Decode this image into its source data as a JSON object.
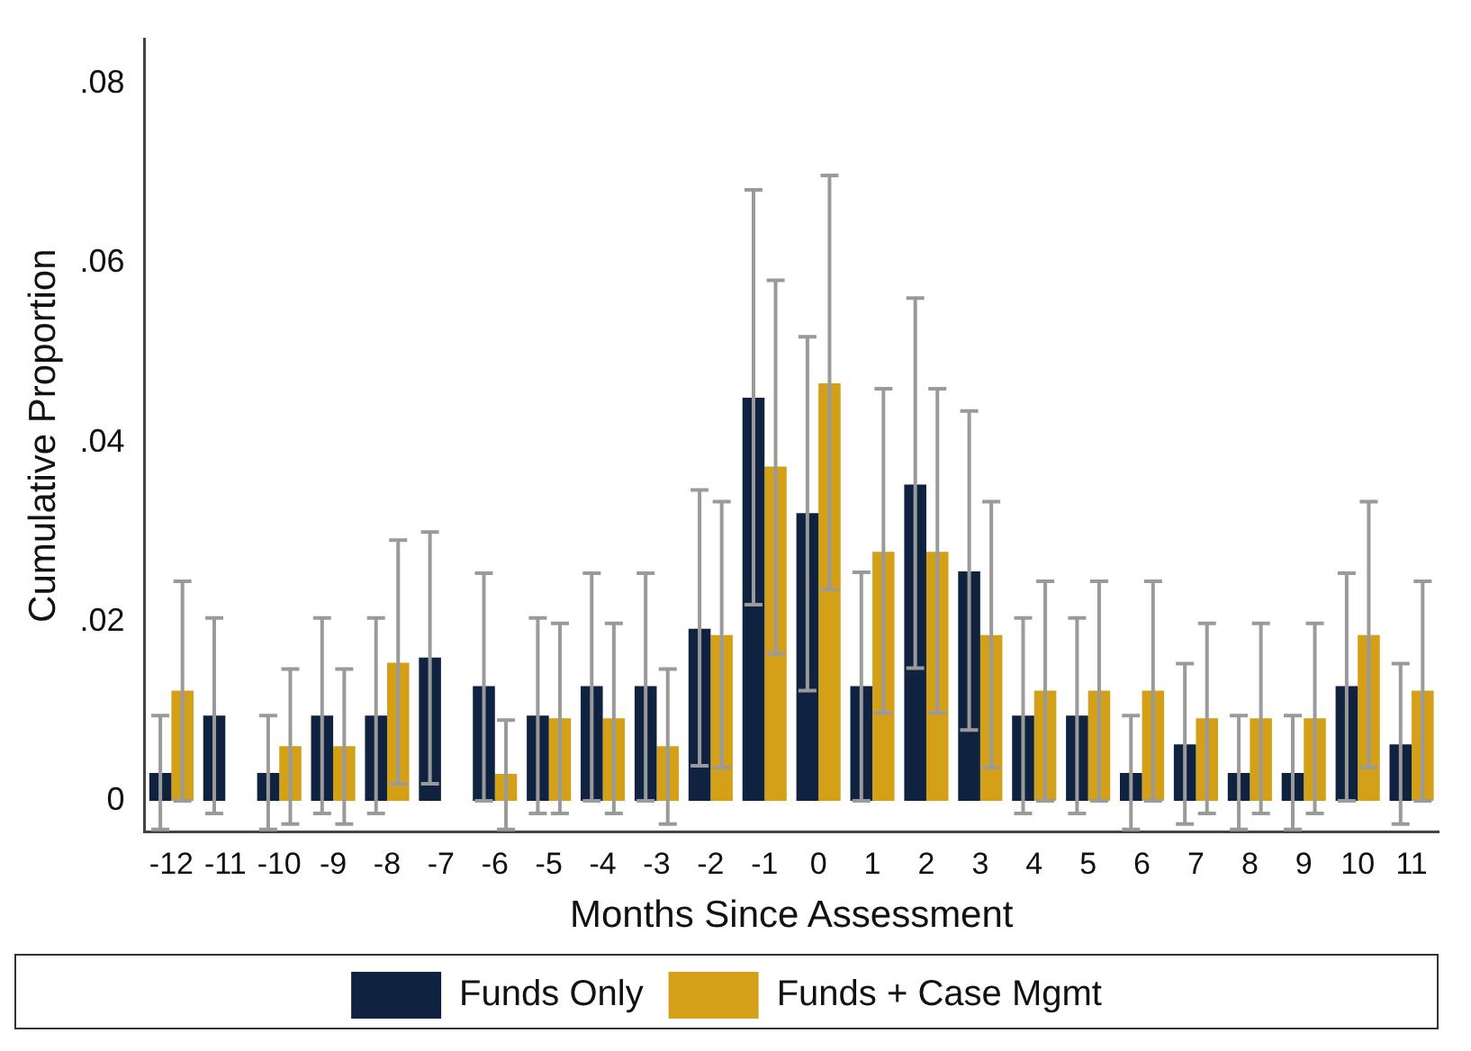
{
  "chart_data": {
    "type": "bar",
    "xlabel": "Months Since Assessment",
    "ylabel": "Cumulative Proportion",
    "categories": [
      "-12",
      "-11",
      "-10",
      "-9",
      "-8",
      "-7",
      "-6",
      "-5",
      "-4",
      "-3",
      "-2",
      "-1",
      "0",
      "1",
      "2",
      "3",
      "4",
      "5",
      "6",
      "7",
      "8",
      "9",
      "10",
      "11"
    ],
    "series": [
      {
        "name": "Funds Only",
        "color": "#0f2340",
        "values": [
          0.0031,
          0.0095,
          0.0031,
          0.0095,
          0.0095,
          0.016,
          0.0128,
          0.0095,
          0.0128,
          0.0128,
          0.0192,
          0.045,
          0.0321,
          0.0128,
          0.0353,
          0.0256,
          0.0095,
          0.0095,
          0.0031,
          0.0063,
          0.0031,
          0.0031,
          0.0128,
          0.0063
        ],
        "errors": [
          [
            -0.0032,
            0.0095
          ],
          [
            -0.0014,
            0.0204
          ],
          [
            -0.0032,
            0.0095
          ],
          [
            -0.0014,
            0.0204
          ],
          [
            -0.0014,
            0.0204
          ],
          [
            0.0019,
            0.03
          ],
          [
            0,
            0.0254
          ],
          [
            -0.0014,
            0.0204
          ],
          [
            0,
            0.0254
          ],
          [
            0,
            0.0254
          ],
          [
            0.0039,
            0.0347
          ],
          [
            0.0219,
            0.0682
          ],
          [
            0.0123,
            0.0518
          ],
          [
            0,
            0.0255
          ],
          [
            0.0148,
            0.0561
          ],
          [
            0.0079,
            0.0435
          ],
          [
            -0.0014,
            0.0204
          ],
          [
            -0.0014,
            0.0204
          ],
          [
            -0.0032,
            0.0095
          ],
          [
            -0.0026,
            0.0153
          ],
          [
            -0.0032,
            0.0095
          ],
          [
            -0.0032,
            0.0095
          ],
          [
            0,
            0.0254
          ],
          [
            -0.0026,
            0.0153
          ]
        ]
      },
      {
        "name": "Funds + Case Mgmt",
        "color": "#d4a017",
        "values": [
          0.0123,
          null,
          0.0061,
          0.0061,
          0.0154,
          null,
          0.003,
          0.0092,
          0.0092,
          0.0061,
          0.0185,
          0.0373,
          0.0466,
          0.0278,
          0.0278,
          0.0185,
          0.0123,
          0.0123,
          0.0123,
          0.0092,
          0.0092,
          0.0092,
          0.0185,
          0.0123
        ],
        "errors": [
          [
            0,
            0.0245
          ],
          null,
          [
            -0.0026,
            0.0147
          ],
          [
            -0.0026,
            0.0147
          ],
          [
            0.0019,
            0.0291
          ],
          null,
          [
            -0.0032,
            0.009
          ],
          [
            -0.0014,
            0.0198
          ],
          [
            -0.0014,
            0.0198
          ],
          [
            -0.0026,
            0.0147
          ],
          [
            0.0037,
            0.0334
          ],
          [
            0.0164,
            0.0581
          ],
          [
            0.0236,
            0.0698
          ],
          [
            0.0098,
            0.046
          ],
          [
            0.0098,
            0.046
          ],
          [
            0.0037,
            0.0334
          ],
          [
            0,
            0.0245
          ],
          [
            0,
            0.0245
          ],
          [
            0,
            0.0245
          ],
          [
            -0.0014,
            0.0198
          ],
          [
            -0.0014,
            0.0198
          ],
          [
            -0.0014,
            0.0198
          ],
          [
            0.0037,
            0.0334
          ],
          [
            0,
            0.0245
          ]
        ]
      }
    ],
    "ylim": [
      -0.0035,
      0.085
    ],
    "yticks": [
      {
        "value": 0,
        "label": "0"
      },
      {
        "value": 0.02,
        "label": ".02"
      },
      {
        "value": 0.04,
        "label": ".04"
      },
      {
        "value": 0.06,
        "label": ".06"
      },
      {
        "value": 0.08,
        "label": ".08"
      }
    ],
    "grid": false,
    "legend": "bottom"
  }
}
